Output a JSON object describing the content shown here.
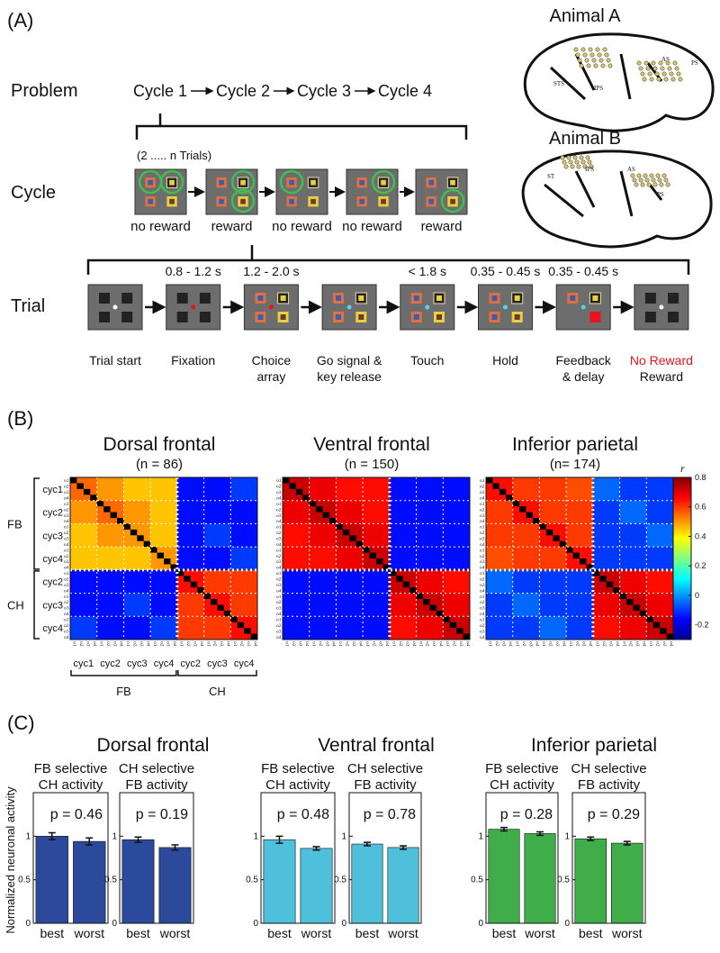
{
  "panel_a": {
    "label": "(A)",
    "problem": {
      "label": "Problem",
      "cycles": [
        "Cycle 1",
        "Cycle 2",
        "Cycle 3",
        "Cycle 4"
      ]
    },
    "cycle": {
      "label": "Cycle",
      "trials_note": "(2 ..... n Trials)",
      "outcomes": [
        "no reward",
        "reward",
        "no reward",
        "no reward",
        "reward"
      ]
    },
    "trial": {
      "label": "Trial",
      "stages": [
        {
          "lines": [
            "Trial start"
          ]
        },
        {
          "duration": "0.8 - 1.2 s",
          "lines": [
            "Fixation"
          ]
        },
        {
          "duration": "1.2 - 2.0 s",
          "lines": [
            "Choice",
            "array"
          ]
        },
        {
          "lines": [
            "Go signal &",
            "key release"
          ]
        },
        {
          "duration": "< 1.8 s",
          "lines": [
            "Touch"
          ]
        },
        {
          "duration": "0.35 - 0.45 s",
          "lines": [
            "Hold"
          ]
        },
        {
          "duration": "0.35 - 0.45 s",
          "lines": [
            "Feedback",
            "&  delay"
          ]
        },
        {
          "lines": [
            "No Reward",
            "Reward"
          ]
        }
      ]
    },
    "animals": [
      {
        "name": "Animal A",
        "areas": [
          "AS",
          "PS",
          "STS",
          "IPS"
        ]
      },
      {
        "name": "Animal B",
        "areas": [
          "AS",
          "PS",
          "ST",
          "IPS"
        ]
      }
    ]
  },
  "panel_b": {
    "label": "(B)",
    "row_groups": [
      "FB",
      "CH"
    ],
    "cycle_labels": [
      "cyc1",
      "cyc2",
      "cyc3",
      "cyc4",
      "cyc2",
      "cyc3",
      "cyc4"
    ],
    "trial_labels": [
      "o1",
      "o2",
      "o3",
      "o4"
    ],
    "colorbar": {
      "label": "r",
      "lim": [
        -0.3,
        0.8
      ],
      "ticks": [
        -0.2,
        0,
        0.2,
        0.4,
        0.6,
        0.8
      ]
    },
    "maps": [
      {
        "title": "Dorsal frontal",
        "n": "(n = 86)",
        "block_r": [
          [
            0.55,
            0.5,
            0.45,
            0.45,
            -0.15,
            -0.15,
            -0.1
          ],
          [
            0.5,
            0.55,
            0.5,
            0.45,
            -0.15,
            -0.15,
            -0.15
          ],
          [
            0.45,
            0.5,
            0.5,
            0.45,
            -0.15,
            -0.1,
            -0.15
          ],
          [
            0.45,
            0.45,
            0.45,
            0.5,
            -0.15,
            -0.15,
            -0.1
          ],
          [
            -0.15,
            -0.15,
            -0.15,
            -0.15,
            0.65,
            0.6,
            0.6
          ],
          [
            -0.15,
            -0.15,
            -0.1,
            -0.15,
            0.6,
            0.65,
            0.6
          ],
          [
            -0.1,
            -0.15,
            -0.15,
            -0.1,
            0.6,
            0.6,
            0.65
          ]
        ]
      },
      {
        "title": "Ventral frontal",
        "n": "(n = 150)",
        "block_r": [
          [
            0.72,
            0.68,
            0.65,
            0.65,
            -0.15,
            -0.15,
            -0.15
          ],
          [
            0.68,
            0.72,
            0.68,
            0.65,
            -0.15,
            -0.15,
            -0.15
          ],
          [
            0.65,
            0.68,
            0.72,
            0.68,
            -0.15,
            -0.15,
            -0.15
          ],
          [
            0.65,
            0.65,
            0.68,
            0.72,
            -0.15,
            -0.15,
            -0.15
          ],
          [
            -0.15,
            -0.15,
            -0.15,
            -0.15,
            0.72,
            0.68,
            0.65
          ],
          [
            -0.15,
            -0.15,
            -0.15,
            -0.15,
            0.68,
            0.72,
            0.68
          ],
          [
            -0.15,
            -0.15,
            -0.15,
            -0.15,
            0.65,
            0.68,
            0.72
          ]
        ]
      },
      {
        "title": "Inferior parietal",
        "n": "(n= 174)",
        "block_r": [
          [
            0.65,
            0.6,
            0.6,
            0.58,
            -0.05,
            -0.1,
            -0.1
          ],
          [
            0.6,
            0.65,
            0.6,
            0.6,
            -0.1,
            -0.05,
            -0.1
          ],
          [
            0.6,
            0.6,
            0.65,
            0.6,
            -0.1,
            -0.1,
            -0.05
          ],
          [
            0.58,
            0.6,
            0.6,
            0.65,
            -0.1,
            -0.1,
            -0.1
          ],
          [
            -0.05,
            -0.1,
            -0.1,
            -0.1,
            0.72,
            0.68,
            0.65
          ],
          [
            -0.1,
            -0.05,
            -0.1,
            -0.1,
            0.68,
            0.72,
            0.68
          ],
          [
            -0.1,
            -0.1,
            -0.05,
            -0.1,
            0.65,
            0.68,
            0.72
          ]
        ]
      }
    ]
  },
  "panel_c": {
    "label": "(C)",
    "y_label": "Normalized neuronal activity",
    "groups": [
      "Dorsal frontal",
      "Ventral frontal",
      "Inferior parietal"
    ]
  },
  "chart_data": [
    {
      "type": "bar",
      "title": [
        "FB selective",
        "CH activity"
      ],
      "annotation": "p = 0.46",
      "categories": [
        "best",
        "worst"
      ],
      "values": [
        1.0,
        0.94
      ],
      "errors": [
        0.04,
        0.04
      ],
      "color": "#2b4a9b",
      "ylim": [
        0,
        1.5
      ],
      "yticks": [
        0,
        0.5,
        1
      ]
    },
    {
      "type": "bar",
      "title": [
        "CH selective",
        "FB activity"
      ],
      "annotation": "p = 0.19",
      "categories": [
        "best",
        "worst"
      ],
      "values": [
        0.96,
        0.87
      ],
      "errors": [
        0.03,
        0.03
      ],
      "color": "#2b4a9b",
      "ylim": [
        0,
        1.5
      ],
      "yticks": [
        0,
        0.5,
        1
      ]
    },
    {
      "type": "bar",
      "title": [
        "FB selective",
        "CH activity"
      ],
      "annotation": "p = 0.48",
      "categories": [
        "best",
        "worst"
      ],
      "values": [
        0.96,
        0.86
      ],
      "errors": [
        0.04,
        0.02
      ],
      "color": "#4ec0dc",
      "ylim": [
        0,
        1.5
      ],
      "yticks": [
        0,
        0.5,
        1
      ]
    },
    {
      "type": "bar",
      "title": [
        "CH selective",
        "FB activity"
      ],
      "annotation": "p = 0.78",
      "categories": [
        "best",
        "worst"
      ],
      "values": [
        0.91,
        0.87
      ],
      "errors": [
        0.02,
        0.02
      ],
      "color": "#4ec0dc",
      "ylim": [
        0,
        1.5
      ],
      "yticks": [
        0,
        0.5,
        1
      ]
    },
    {
      "type": "bar",
      "title": [
        "FB selective",
        "CH activity"
      ],
      "annotation": "p = 0.28",
      "categories": [
        "best",
        "worst"
      ],
      "values": [
        1.08,
        1.03
      ],
      "errors": [
        0.02,
        0.02
      ],
      "color": "#3fae49",
      "ylim": [
        0,
        1.5
      ],
      "yticks": [
        0,
        0.5,
        1
      ]
    },
    {
      "type": "bar",
      "title": [
        "CH selective",
        "FB activity"
      ],
      "annotation": "p = 0.29",
      "categories": [
        "best",
        "worst"
      ],
      "values": [
        0.97,
        0.92
      ],
      "errors": [
        0.02,
        0.02
      ],
      "color": "#3fae49",
      "ylim": [
        0,
        1.5
      ],
      "yticks": [
        0,
        0.5,
        1
      ]
    }
  ]
}
